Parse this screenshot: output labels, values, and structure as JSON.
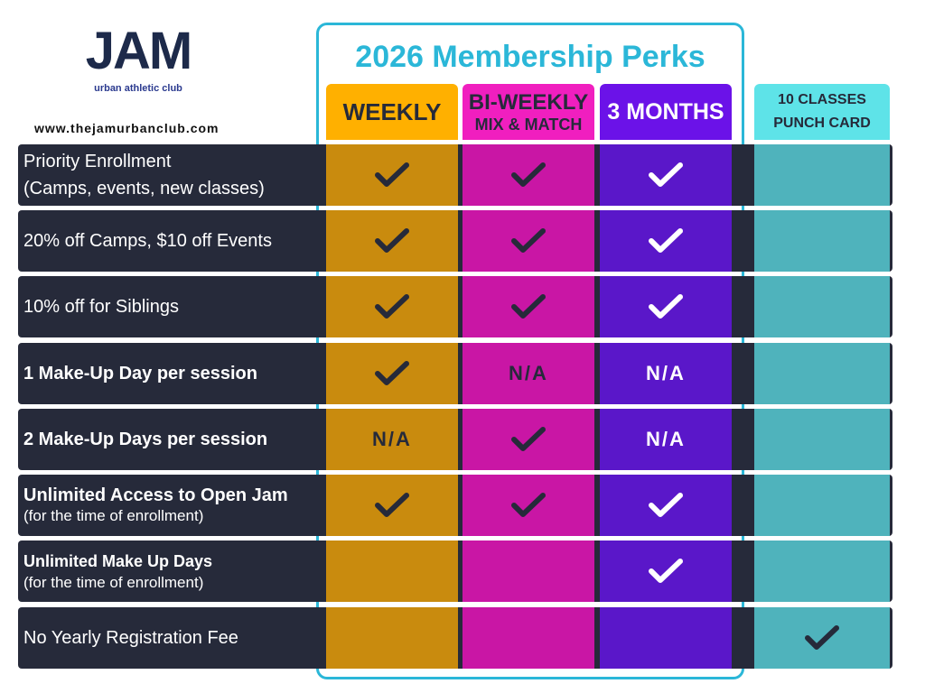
{
  "logo": {
    "text": "JAM",
    "tagline": "urban athletic club"
  },
  "website": "www.thejamurbanclub.com",
  "title": "2026 Membership Perks",
  "columns": {
    "weekly": "WEEKLY",
    "bi_weekly": {
      "title": "BI-WEEKLY",
      "subtitle": "MIX & MATCH"
    },
    "three_months": "3 MONTHS",
    "punch_card": {
      "line1": "10 CLASSES",
      "line2": "PUNCH CARD"
    }
  },
  "rows": [
    {
      "label": "Priority Enrollment",
      "note": "(Camps, events, new classes)"
    },
    {
      "label": "20% off Camps, $10 off Events"
    },
    {
      "label": "10% off for Siblings"
    },
    {
      "label": "1 Make-Up Day per session",
      "cells": {
        "bi_weekly": "N/A",
        "three_months": "N/A"
      }
    },
    {
      "label": "2 Make-Up Days per session",
      "cells": {
        "weekly": "N/A",
        "three_months": "N/A"
      }
    },
    {
      "label": "Unlimited Access to Open Jam",
      "note": "(for the time of enrollment)"
    },
    {
      "label": "Unlimited Make Up Days",
      "note": "(for the time of enrollment)"
    },
    {
      "label": "No Yearly Registration Fee"
    }
  ]
}
